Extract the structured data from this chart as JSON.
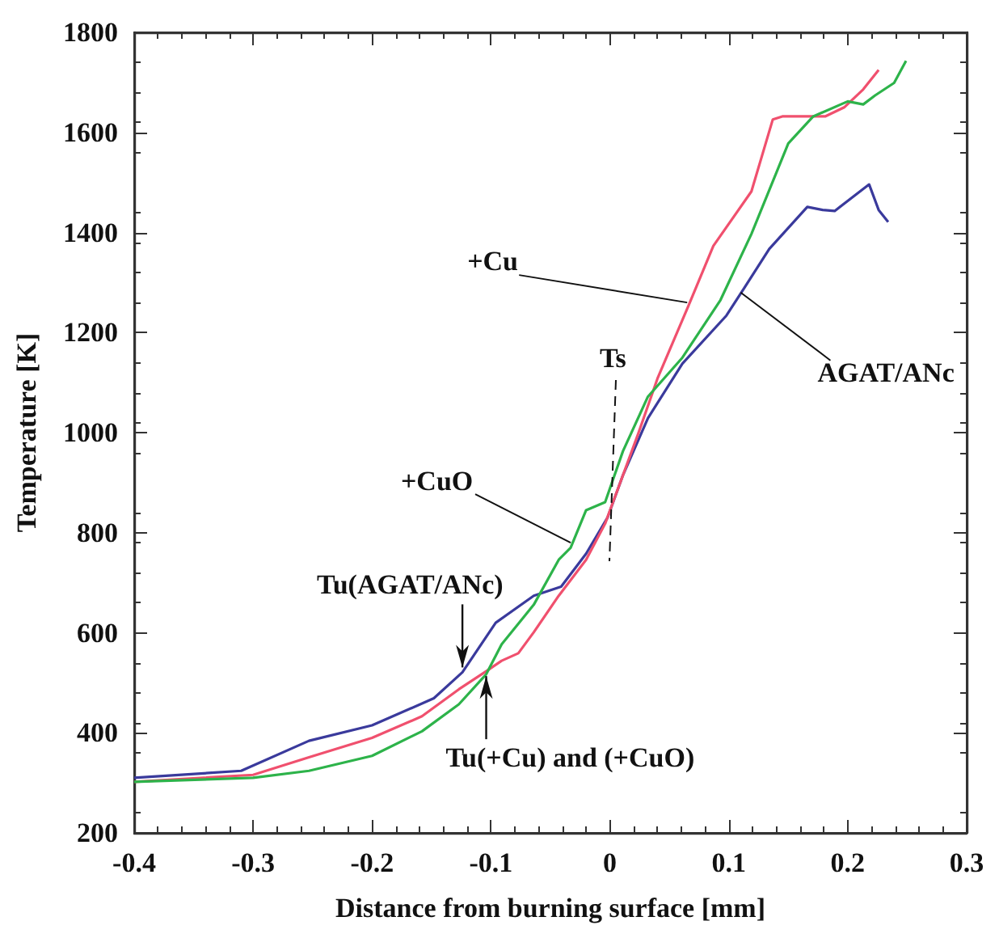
{
  "chart_data": {
    "type": "line",
    "xlabel": "Distance from burning surface [mm]",
    "ylabel": "Temperature [K]",
    "xlim": [
      -0.4,
      0.3
    ],
    "xticks": [
      -0.4,
      -0.3,
      -0.2,
      -0.1,
      0,
      0.1,
      0.2,
      0.3
    ],
    "ylim": [
      200,
      1800
    ],
    "yticks": [
      200,
      400,
      600,
      800,
      1000,
      1200,
      1400,
      1600,
      1800
    ],
    "grid": false,
    "marker": "none",
    "line_style": "solid",
    "series": [
      {
        "color": "#3a3a9c",
        "x": [
          -0.4,
          -0.31,
          -0.253,
          -0.2,
          -0.148,
          -0.124,
          -0.096,
          -0.064,
          -0.041,
          -0.02,
          -0.002,
          0.011,
          0.032,
          0.061,
          0.098,
          0.113,
          0.134,
          0.166,
          0.179,
          0.189,
          0.218,
          0.226,
          0.234
        ],
        "values": [
          310,
          324,
          384,
          415,
          469,
          521,
          620,
          674,
          692,
          758,
          830,
          915,
          1029,
          1138,
          1234,
          1289,
          1367,
          1451,
          1445,
          1443,
          1496,
          1445,
          1421
        ]
      },
      {
        "color": "#f0506e",
        "x": [
          -0.4,
          -0.3,
          -0.253,
          -0.2,
          -0.158,
          -0.127,
          -0.104,
          -0.091,
          -0.077,
          -0.064,
          -0.043,
          -0.02,
          -0.004,
          0.011,
          0.024,
          0.04,
          0.066,
          0.087,
          0.119,
          0.137,
          0.145,
          0.166,
          0.181,
          0.197,
          0.213,
          0.226
        ],
        "values": [
          302,
          316,
          351,
          390,
          433,
          487,
          523,
          544,
          559,
          601,
          674,
          746,
          818,
          915,
          999,
          1108,
          1253,
          1373,
          1482,
          1626,
          1632,
          1632,
          1632,
          1650,
          1686,
          1725
        ]
      },
      {
        "color": "#2db34a",
        "x": [
          -0.4,
          -0.3,
          -0.253,
          -0.2,
          -0.158,
          -0.127,
          -0.104,
          -0.091,
          -0.064,
          -0.043,
          -0.033,
          -0.02,
          -0.004,
          0.011,
          0.032,
          0.061,
          0.093,
          0.119,
          0.15,
          0.171,
          0.2,
          0.213,
          0.223,
          0.239,
          0.249
        ],
        "values": [
          302,
          310,
          324,
          354,
          403,
          457,
          517,
          577,
          656,
          746,
          770,
          845,
          861,
          963,
          1072,
          1150,
          1265,
          1397,
          1578,
          1632,
          1662,
          1656,
          1674,
          1699,
          1743
        ]
      }
    ],
    "annotations": [
      {
        "text": "+Cu",
        "x": 0.065,
        "y": 1260
      },
      {
        "text": "AGAT/ANc",
        "x": 0.11,
        "y": 1280
      },
      {
        "text": "+CuO",
        "x": -0.033,
        "y": 780
      },
      "Ts",
      {
        "text": "Tu(AGAT/ANc)",
        "x": -0.124,
        "y": 521
      },
      {
        "text": "Tu(+Cu) and (+CuO)",
        "x": -0.104,
        "y": 523
      }
    ]
  }
}
